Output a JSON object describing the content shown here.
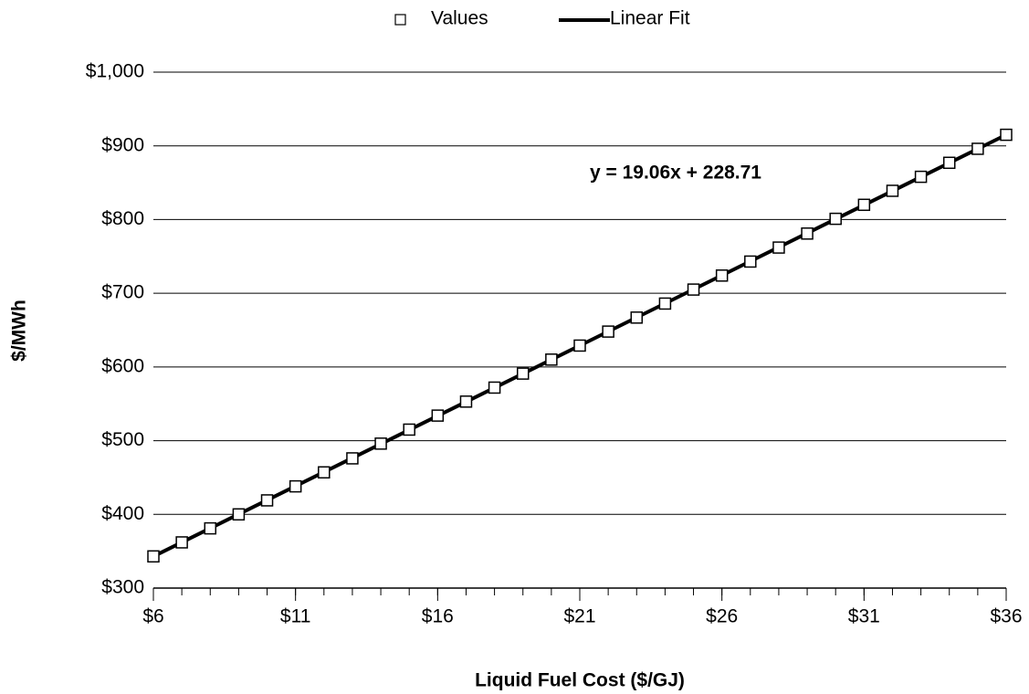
{
  "chart_data": {
    "type": "scatter",
    "x_label": "Liquid Fuel Cost ($/GJ)",
    "y_label": "$/MWh",
    "annotation": "y = 19.06x + 228.71",
    "series": [
      {
        "name": "Values",
        "color": "#000000",
        "x": [
          6,
          7,
          8,
          9,
          10,
          11,
          12,
          13,
          14,
          15,
          16,
          17,
          18,
          19,
          20,
          21,
          22,
          23,
          24,
          25,
          26,
          27,
          28,
          29,
          30,
          31,
          32,
          33,
          34,
          35,
          36
        ],
        "values": [
          343,
          362,
          381,
          400,
          419,
          438,
          457,
          476,
          496,
          515,
          534,
          553,
          572,
          591,
          610,
          629,
          648,
          667,
          686,
          705,
          724,
          743,
          762,
          781,
          801,
          820,
          839,
          858,
          877,
          896,
          915
        ]
      },
      {
        "name": "Linear Fit",
        "color": "#000000",
        "x": [
          6,
          36
        ],
        "values": [
          343,
          915
        ]
      }
    ],
    "xlim": [
      6,
      36
    ],
    "xticks": [
      {
        "value": 6,
        "label": "$6"
      },
      {
        "value": 11,
        "label": "$11"
      },
      {
        "value": 16,
        "label": "$16"
      },
      {
        "value": 21,
        "label": "$21"
      },
      {
        "value": 26,
        "label": "$26"
      },
      {
        "value": 31,
        "label": "$31"
      },
      {
        "value": 36,
        "label": "$36"
      }
    ],
    "ylim": [
      300,
      1000
    ],
    "yticks": [
      {
        "value": 300,
        "label": "$300"
      },
      {
        "value": 400,
        "label": "$400"
      },
      {
        "value": 500,
        "label": "$500"
      },
      {
        "value": 600,
        "label": "$600"
      },
      {
        "value": 700,
        "label": "$700"
      },
      {
        "value": 800,
        "label": "$800"
      },
      {
        "value": 900,
        "label": "$900"
      },
      {
        "value": 1000,
        "label": "$1,000"
      }
    ],
    "grid": true,
    "legend": "top"
  }
}
